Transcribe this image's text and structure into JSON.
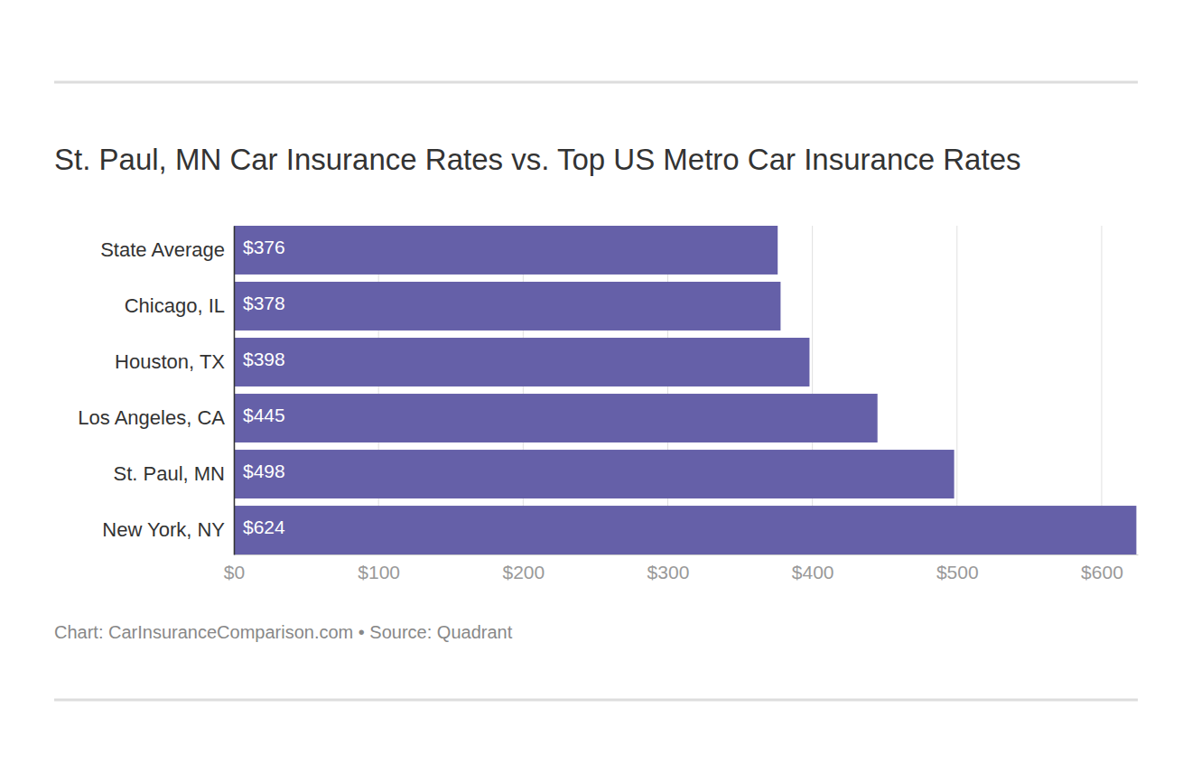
{
  "chart_data": {
    "type": "bar",
    "title": "St. Paul, MN Car Insurance Rates vs. Top US Metro Car Insurance Rates",
    "source": "Chart: CarInsuranceComparison.com • Source: Quadrant",
    "orientation": "horizontal",
    "categories": [
      "State Average",
      "Chicago, IL",
      "Houston, TX",
      "Los Angeles, CA",
      "St. Paul, MN",
      "New York, NY"
    ],
    "values": [
      376,
      378,
      398,
      445,
      498,
      624
    ],
    "value_labels": [
      "$376",
      "$378",
      "$398",
      "$445",
      "$498",
      "$624"
    ],
    "data_labels": true,
    "color": "#6560a8",
    "xlim": [
      0,
      625
    ],
    "xticks": [
      {
        "value": 0,
        "label": "$0"
      },
      {
        "value": 100,
        "label": "$100"
      },
      {
        "value": 200,
        "label": "$200"
      },
      {
        "value": 300,
        "label": "$300"
      },
      {
        "value": 400,
        "label": "$400"
      },
      {
        "value": 500,
        "label": "$500"
      },
      {
        "value": 600,
        "label": "$600"
      }
    ],
    "grid": true
  }
}
